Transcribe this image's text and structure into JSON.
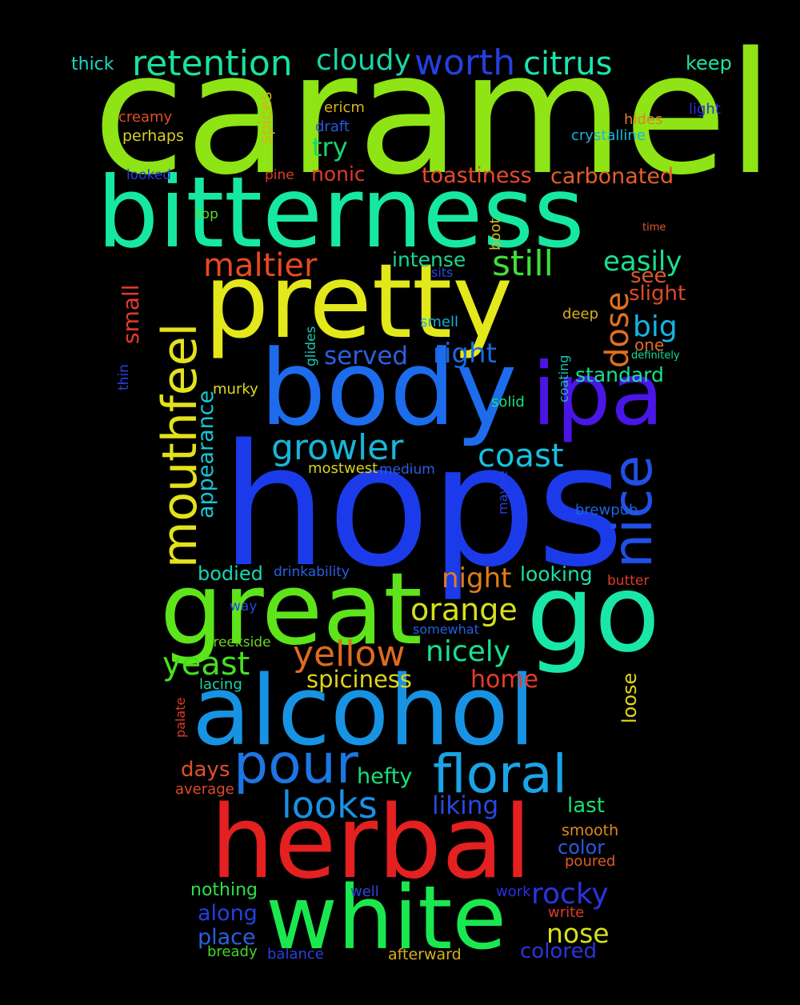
{
  "words": [
    {
      "text": "caramel",
      "color": "#8ee414"
    },
    {
      "text": "bitterness",
      "color": "#17e8a0"
    },
    {
      "text": "pretty",
      "color": "#e3e81a"
    },
    {
      "text": "body",
      "color": "#1c6cec"
    },
    {
      "text": "ipa",
      "color": "#4a16e8"
    },
    {
      "text": "hops",
      "color": "#1b3bea"
    },
    {
      "text": "great",
      "color": "#5ee41a"
    },
    {
      "text": "go",
      "color": "#1ae6a8"
    },
    {
      "text": "alcohol",
      "color": "#1893e3"
    },
    {
      "text": "herbal",
      "color": "#e42020"
    },
    {
      "text": "white",
      "color": "#1ae84e"
    },
    {
      "text": "mouthfeel",
      "color": "#e3e21a"
    },
    {
      "text": "nice",
      "color": "#2050e6"
    },
    {
      "text": "pour",
      "color": "#1c76e4"
    },
    {
      "text": "floral",
      "color": "#1aa4e6"
    },
    {
      "text": "retention",
      "color": "#18e29a"
    },
    {
      "text": "cloudy",
      "color": "#18d6a4"
    },
    {
      "text": "worth",
      "color": "#2440e0"
    },
    {
      "text": "citrus",
      "color": "#18e6b0"
    },
    {
      "text": "keep",
      "color": "#1ae4a0"
    },
    {
      "text": "thick",
      "color": "#18d8c0"
    },
    {
      "text": "spices",
      "color": "#d6b21a"
    },
    {
      "text": "ericm",
      "color": "#d8b41a"
    },
    {
      "text": "creamy",
      "color": "#e05020"
    },
    {
      "text": "perhaps",
      "color": "#d8d020"
    },
    {
      "text": "draft",
      "color": "#2a58e0"
    },
    {
      "text": "hides",
      "color": "#e0802a"
    },
    {
      "text": "light",
      "color": "#2830e0"
    },
    {
      "text": "crystalline",
      "color": "#18b6e0"
    },
    {
      "text": "try",
      "color": "#18d670"
    },
    {
      "text": "looked",
      "color": "#2a40e0"
    },
    {
      "text": "pine",
      "color": "#e03a28"
    },
    {
      "text": "nonic",
      "color": "#e03a2a"
    },
    {
      "text": "toastiness",
      "color": "#e84a2a"
    },
    {
      "text": "carbonated",
      "color": "#e0602a"
    },
    {
      "text": "top",
      "color": "#5cd820"
    },
    {
      "text": "boot",
      "color": "#d8b81a"
    },
    {
      "text": "time",
      "color": "#e05a30"
    },
    {
      "text": "maltier",
      "color": "#e84820"
    },
    {
      "text": "still",
      "color": "#3ee038"
    },
    {
      "text": "easily",
      "color": "#1ae090"
    },
    {
      "text": "intense",
      "color": "#1ad690"
    },
    {
      "text": "small",
      "color": "#e83a2a"
    },
    {
      "text": "dose",
      "color": "#e07020"
    },
    {
      "text": "see",
      "color": "#e05a28"
    },
    {
      "text": "slight",
      "color": "#e04a2a"
    },
    {
      "text": "sits",
      "color": "#2848e0"
    },
    {
      "text": "big",
      "color": "#18b4e6"
    },
    {
      "text": "deep",
      "color": "#d8b01a"
    },
    {
      "text": "smell",
      "color": "#18b0d6"
    },
    {
      "text": "one",
      "color": "#e06a28"
    },
    {
      "text": "glides",
      "color": "#18c6b0"
    },
    {
      "text": "definitely",
      "color": "#1ad898"
    },
    {
      "text": "thin",
      "color": "#2a40e0"
    },
    {
      "text": "served",
      "color": "#2a60e0"
    },
    {
      "text": "right",
      "color": "#1a68e4"
    },
    {
      "text": "coating",
      "color": "#18c0b8"
    },
    {
      "text": "standard",
      "color": "#18e090"
    },
    {
      "text": "murky",
      "color": "#e2d81a"
    },
    {
      "text": "appearance",
      "color": "#18c6d6"
    },
    {
      "text": "solid",
      "color": "#18e078"
    },
    {
      "text": "growler",
      "color": "#18b6d8"
    },
    {
      "text": "coast",
      "color": "#18c0e0"
    },
    {
      "text": "mostwest",
      "color": "#d8d21a"
    },
    {
      "text": "medium",
      "color": "#2a5ee0"
    },
    {
      "text": "maybe",
      "color": "#2a40e0"
    },
    {
      "text": "brewpub",
      "color": "#1a64e4"
    },
    {
      "text": "bodied",
      "color": "#18d6b0"
    },
    {
      "text": "drinkability",
      "color": "#2a60e0"
    },
    {
      "text": "night",
      "color": "#e07e1a"
    },
    {
      "text": "looking",
      "color": "#18e0a8"
    },
    {
      "text": "butter",
      "color": "#e03a2a"
    },
    {
      "text": "way",
      "color": "#2448e0"
    },
    {
      "text": "orange",
      "color": "#d6e01a"
    },
    {
      "text": "somewhat",
      "color": "#2060e0"
    },
    {
      "text": "yellow",
      "color": "#e06a20"
    },
    {
      "text": "creekside",
      "color": "#6ad61a"
    },
    {
      "text": "yeast",
      "color": "#46e020"
    },
    {
      "text": "nicely",
      "color": "#18e090"
    },
    {
      "text": "spiciness",
      "color": "#e0d21a"
    },
    {
      "text": "home",
      "color": "#e83a2a"
    },
    {
      "text": "lacing",
      "color": "#18d6a0"
    },
    {
      "text": "palate",
      "color": "#e03a2a"
    },
    {
      "text": "loose",
      "color": "#e0d81a"
    },
    {
      "text": "days",
      "color": "#e0502a"
    },
    {
      "text": "hefty",
      "color": "#18e078"
    },
    {
      "text": "average",
      "color": "#e04a2a"
    },
    {
      "text": "looks",
      "color": "#1a90e6"
    },
    {
      "text": "liking",
      "color": "#2a48e0"
    },
    {
      "text": "last",
      "color": "#18e070"
    },
    {
      "text": "smooth",
      "color": "#e08a1a"
    },
    {
      "text": "color",
      "color": "#2a5ae0"
    },
    {
      "text": "poured",
      "color": "#e05a28"
    },
    {
      "text": "nothing",
      "color": "#2ae048"
    },
    {
      "text": "well",
      "color": "#2a48e0"
    },
    {
      "text": "work",
      "color": "#2a30e0"
    },
    {
      "text": "rocky",
      "color": "#2a34e0"
    },
    {
      "text": "write",
      "color": "#e03a2a"
    },
    {
      "text": "along",
      "color": "#2440e0"
    },
    {
      "text": "nose",
      "color": "#d8e01a"
    },
    {
      "text": "place",
      "color": "#2a60e0"
    },
    {
      "text": "bready",
      "color": "#3ed820"
    },
    {
      "text": "balance",
      "color": "#2a40e0"
    },
    {
      "text": "afterward",
      "color": "#d8b01a"
    },
    {
      "text": "colored",
      "color": "#2a34e0"
    }
  ]
}
